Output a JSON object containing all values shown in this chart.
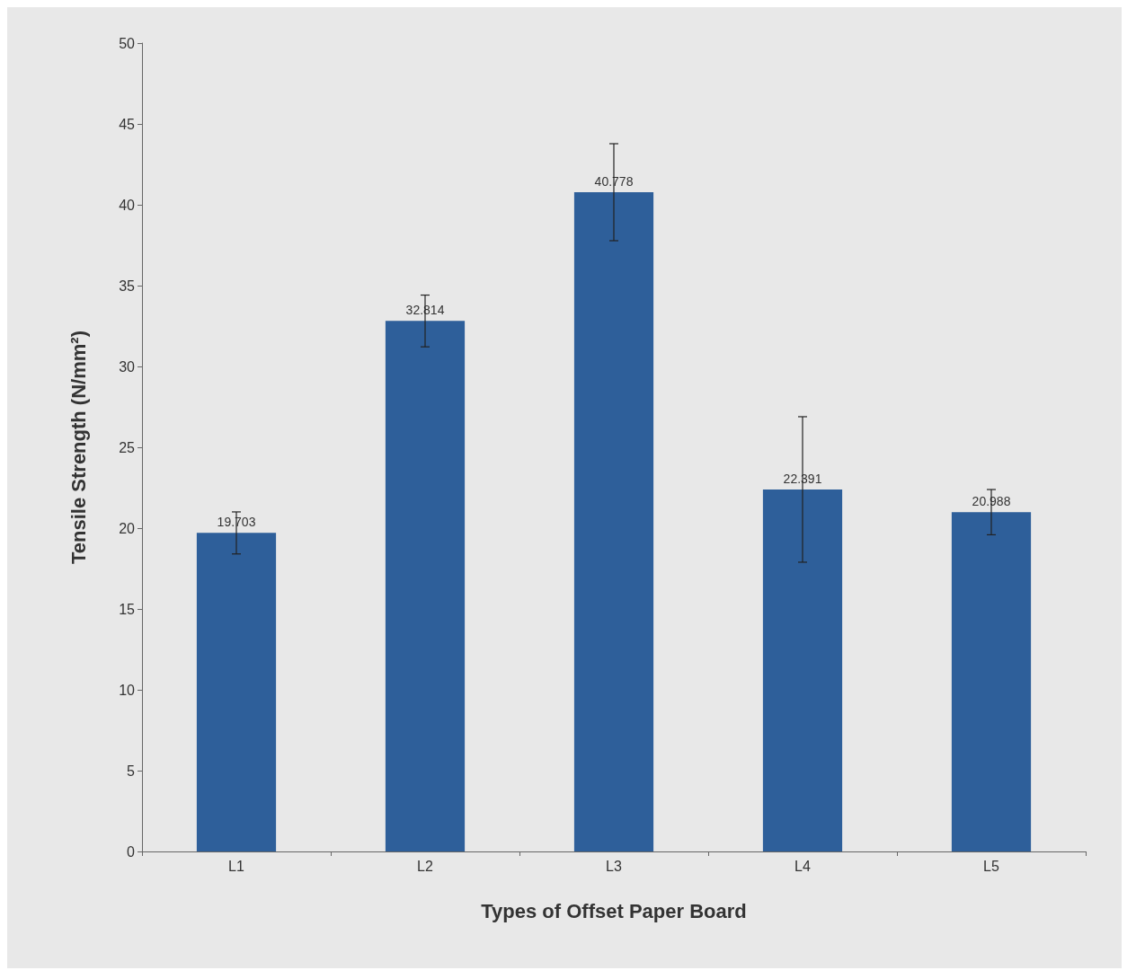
{
  "chart_data": {
    "type": "bar",
    "xlabel": "Types of Offset Paper Board",
    "ylabel": "Tensile Strength (N/mm²)",
    "categories": [
      "L1",
      "L2",
      "L3",
      "L4",
      "L5"
    ],
    "values": [
      19.703,
      32.814,
      40.778,
      22.391,
      20.988
    ],
    "errors": [
      1.3,
      1.6,
      3,
      4.5,
      1.4
    ],
    "color": "#2e5f9a",
    "ylim": [
      0,
      50
    ],
    "yticks": [
      0,
      5,
      10,
      15,
      20,
      25,
      30,
      35,
      40,
      45,
      50
    ],
    "grid": false,
    "data_labels": true
  }
}
